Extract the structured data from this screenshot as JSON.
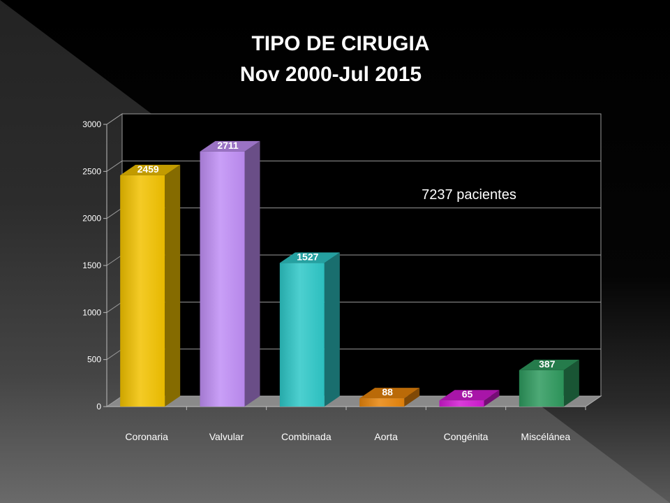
{
  "title": "TIPO DE CIRUGIA",
  "subtitle": "Nov 2000-Jul 2015",
  "annotation": "7237 pacientes",
  "chart_data": {
    "type": "bar",
    "title": "TIPO DE CIRUGIA",
    "subtitle": "Nov 2000-Jul 2015",
    "categories": [
      "Coronaria",
      "Valvular",
      "Combinada",
      "Aorta",
      "Congénita",
      "Miscélánea"
    ],
    "values": [
      2459,
      2711,
      1527,
      88,
      65,
      387
    ],
    "ylim": [
      0,
      3000
    ],
    "yticks": [
      0,
      500,
      1000,
      1500,
      2000,
      2500,
      3000
    ],
    "colors": [
      "#f2c200",
      "#c08ef5",
      "#2ec8c8",
      "#e8850a",
      "#d21ad2",
      "#2e9a5e"
    ],
    "grid": true,
    "annotations": [
      "7237 pacientes"
    ],
    "data_labels": true
  }
}
